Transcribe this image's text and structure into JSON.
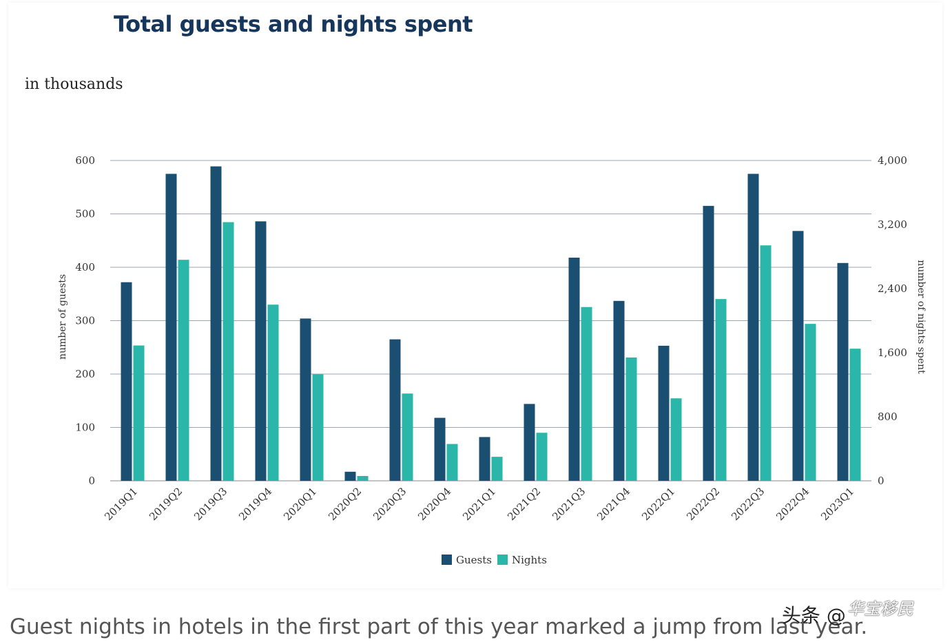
{
  "chart_data": {
    "type": "bar",
    "title": "Total guests and nights spent",
    "subtitle": "in thousands",
    "categories": [
      "2019Q1",
      "2019Q2",
      "2019Q3",
      "2019Q4",
      "2020Q1",
      "2020Q2",
      "2020Q3",
      "2020Q4",
      "2021Q1",
      "2021Q2",
      "2021Q3",
      "2021Q4",
      "2022Q1",
      "2022Q2",
      "2022Q3",
      "2022Q4",
      "2023Q1"
    ],
    "series": [
      {
        "name": "Guests",
        "axis": "left",
        "color": "#1b4f72",
        "values": [
          372,
          575,
          589,
          486,
          304,
          17,
          265,
          118,
          82,
          144,
          418,
          337,
          253,
          515,
          575,
          468,
          408
        ]
      },
      {
        "name": "Nights",
        "axis": "right",
        "color": "#2ab7a9",
        "values": [
          1690,
          2760,
          3230,
          2200,
          1330,
          60,
          1090,
          460,
          300,
          600,
          2170,
          1540,
          1030,
          2270,
          2940,
          1960,
          1650
        ]
      }
    ],
    "ylabel": "number of guests",
    "y2label": "number of nights spent",
    "ylim": [
      0,
      600
    ],
    "y2lim": [
      0,
      4000
    ],
    "yticks": [
      "0",
      "100",
      "200",
      "300",
      "400",
      "500",
      "600"
    ],
    "y2ticks": [
      "0",
      "800",
      "1,600",
      "2,400",
      "3,200",
      "4,000"
    ],
    "legend_position": "bottom-center",
    "grid": true
  },
  "caption": "Guest nights in hotels in the first part of this year marked a jump from last year.",
  "watermark": "头条 @",
  "watermark_logo": "华宝移民"
}
